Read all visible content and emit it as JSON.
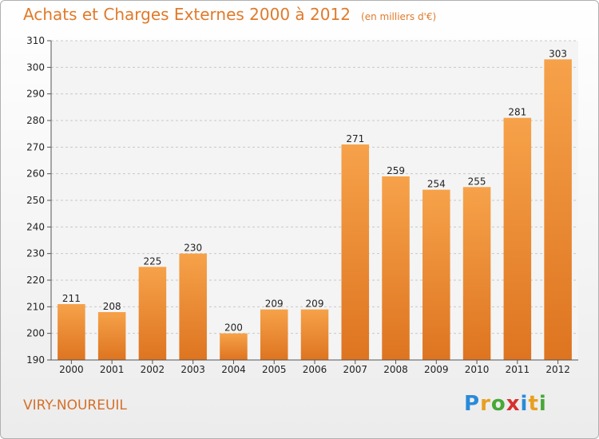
{
  "header": {
    "title": "Achats et Charges Externes 2000 à 2012",
    "unit": "(en milliers d'€)"
  },
  "footer": {
    "city": "VIRY-NOUREUIL",
    "logo": [
      "P",
      "r",
      "o",
      "x",
      "i",
      "t",
      "i"
    ],
    "logo_colors": [
      "#2a8ad8",
      "#e8a020",
      "#48a838",
      "#d83030",
      "#2a8ad8",
      "#e8a020",
      "#48a838"
    ]
  },
  "chart_data": {
    "type": "bar",
    "title": "Achats et Charges Externes 2000 à 2012",
    "subtitle": "(en milliers d'€)",
    "categories": [
      "2000",
      "2001",
      "2002",
      "2003",
      "2004",
      "2005",
      "2006",
      "2007",
      "2008",
      "2009",
      "2010",
      "2011",
      "2012"
    ],
    "values": [
      211,
      208,
      225,
      230,
      200,
      209,
      209,
      271,
      259,
      254,
      255,
      281,
      303
    ],
    "ylim": [
      190,
      310
    ],
    "yticks": [
      190,
      200,
      210,
      220,
      230,
      240,
      250,
      260,
      270,
      280,
      290,
      300,
      310
    ],
    "grid": true,
    "bar_color": "#f0953a"
  }
}
